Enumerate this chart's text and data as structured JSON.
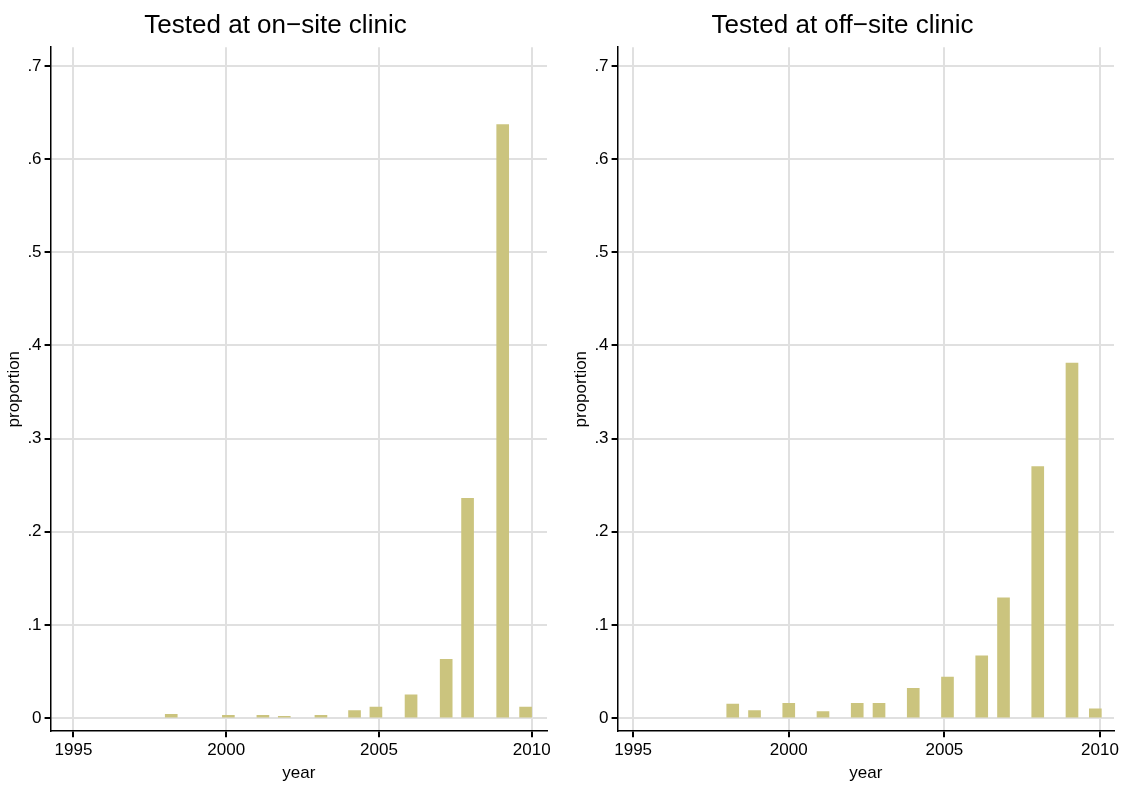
{
  "chart_data": [
    {
      "type": "bar",
      "title": "Tested at on−site clinic",
      "xlabel": "year",
      "ylabel": "proportion",
      "color": "#cbc47e",
      "x": [
        1998.2,
        2000.07,
        2001.2,
        2001.9,
        2003.1,
        2004.2,
        2004.9,
        2006.05,
        2007.2,
        2007.9,
        2009.05,
        2009.8
      ],
      "values": [
        0.004,
        0.003,
        0.003,
        0.002,
        0.003,
        0.008,
        0.012,
        0.025,
        0.063,
        0.236,
        0.637,
        0.012
      ],
      "xlim": [
        1994.25,
        2010.5
      ],
      "xticks": [
        1995,
        2000,
        2005,
        2010
      ],
      "ylim": [
        -0.014,
        0.72
      ],
      "yticks": [
        {
          "value": 0,
          "label": "0"
        },
        {
          "value": 0.1,
          "label": ".1"
        },
        {
          "value": 0.2,
          "label": ".2"
        },
        {
          "value": 0.3,
          "label": ".3"
        },
        {
          "value": 0.4,
          "label": ".4"
        },
        {
          "value": 0.5,
          "label": ".5"
        },
        {
          "value": 0.6,
          "label": ".6"
        },
        {
          "value": 0.7,
          "label": ".7"
        }
      ],
      "grid": true
    },
    {
      "type": "bar",
      "title": "Tested at off−site clinic",
      "xlabel": "year",
      "ylabel": "proportion",
      "color": "#cbc47e",
      "x": [
        1998.2,
        1998.9,
        2000.0,
        2001.1,
        2002.2,
        2002.9,
        2004.0,
        2005.1,
        2006.2,
        2006.9,
        2008.0,
        2009.1,
        2009.85
      ],
      "values": [
        0.015,
        0.008,
        0.016,
        0.007,
        0.016,
        0.016,
        0.032,
        0.044,
        0.067,
        0.129,
        0.27,
        0.381,
        0.01
      ],
      "xlim": [
        1994.5,
        2010.45
      ],
      "xticks": [
        1995,
        2000,
        2005,
        2010
      ],
      "ylim": [
        -0.014,
        0.72
      ],
      "yticks": [
        {
          "value": 0,
          "label": "0"
        },
        {
          "value": 0.1,
          "label": ".1"
        },
        {
          "value": 0.2,
          "label": ".2"
        },
        {
          "value": 0.3,
          "label": ".3"
        },
        {
          "value": 0.4,
          "label": ".4"
        },
        {
          "value": 0.5,
          "label": ".5"
        },
        {
          "value": 0.6,
          "label": ".6"
        },
        {
          "value": 0.7,
          "label": ".7"
        }
      ],
      "grid": true
    }
  ]
}
